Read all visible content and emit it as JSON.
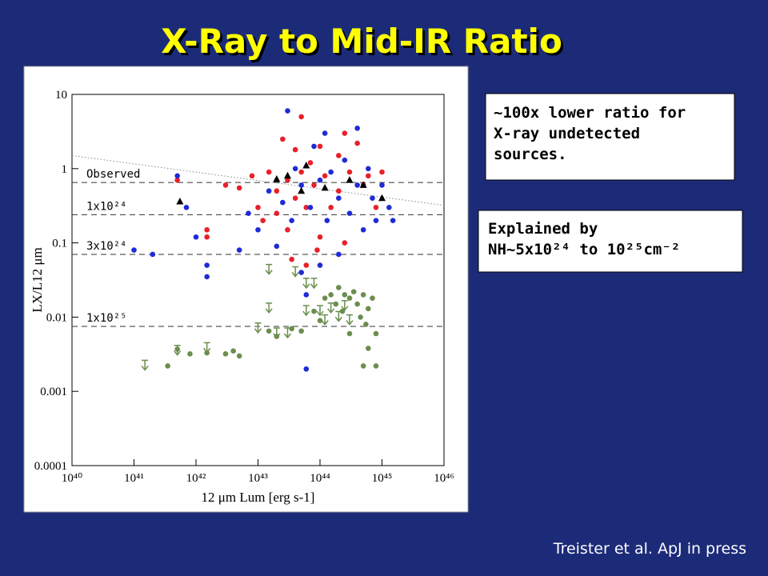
{
  "title": "X-Ray to Mid-IR Ratio",
  "callouts": [
    [
      "~100x lower ratio for",
      "X-ray undetected",
      "sources."
    ],
    [
      "Explained by",
      "NH~5x10²⁴ to 10²⁵cm⁻²"
    ]
  ],
  "citation": "Treister et al. ApJ in press",
  "chart_data": {
    "type": "scatter",
    "x_label": "12 μm Lum [erg s-1]",
    "y_label": "LX/L12 μm",
    "xscale": "log",
    "yscale": "log",
    "xlim": [
      1e+40,
      1e+46
    ],
    "ylim": [
      0.0001,
      10
    ],
    "xticks": [
      {
        "value": 1e+40,
        "label": "10⁴⁰"
      },
      {
        "value": 1e+41,
        "label": "10⁴¹"
      },
      {
        "value": 1e+42,
        "label": "10⁴²"
      },
      {
        "value": 1e+43,
        "label": "10⁴³"
      },
      {
        "value": 1e+44,
        "label": "10⁴⁴"
      },
      {
        "value": 1e+45,
        "label": "10⁴⁵"
      },
      {
        "value": 1e+46,
        "label": "10⁴⁶"
      }
    ],
    "yticks": [
      10,
      1,
      0.1,
      0.01,
      0.001,
      0.0001
    ],
    "reference_lines": [
      {
        "label": "Observed",
        "value": 0.65
      },
      {
        "label": "1x10²⁴",
        "value": 0.24
      },
      {
        "label": "3x10²⁴",
        "value": 0.07
      },
      {
        "label": "1x10²⁵",
        "value": 0.0075
      }
    ],
    "trend_line": {
      "x": [
        1e+40,
        1e+46
      ],
      "y": [
        1.5,
        0.32
      ]
    },
    "series": [
      {
        "color": "#e8202a",
        "marker": "dot",
        "x": [
          5e+41,
          1.5e+42,
          1.5e+42,
          3e+42,
          5e+42,
          8e+42,
          1e+43,
          1.5e+43,
          2e+43,
          2e+43,
          2.5e+43,
          3e+43,
          3e+43,
          4e+43,
          4e+43,
          5e+43,
          5e+43,
          6e+43,
          7e+43,
          8e+43,
          1e+44,
          1e+44,
          1.2e+44,
          1.5e+44,
          2e+44,
          2e+44,
          2.5e+44,
          3e+44,
          4e+44,
          5e+44,
          6e+44,
          8e+44,
          1e+45,
          3.5e+43,
          6e+43,
          2.5e+44,
          1.2e+43,
          9e+43
        ],
        "values": [
          0.7,
          0.15,
          0.12,
          0.6,
          0.55,
          0.8,
          0.3,
          0.9,
          0.5,
          0.25,
          2.5,
          0.7,
          0.15,
          1.8,
          0.4,
          5,
          0.9,
          0.3,
          1.2,
          0.6,
          2.0,
          0.12,
          0.8,
          0.3,
          1.5,
          0.5,
          0.1,
          0.9,
          2.2,
          0.6,
          0.8,
          0.3,
          0.9,
          0.06,
          0.05,
          3,
          0.2,
          0.08
        ]
      },
      {
        "color": "#1f2bd6",
        "marker": "dot",
        "x": [
          5e+41,
          7e+41,
          1e+42,
          1.5e+42,
          1.5e+42,
          2e+41,
          1e+41,
          7e+42,
          1e+43,
          1.5e+43,
          2e+43,
          2.5e+43,
          3e+43,
          3.5e+43,
          4e+43,
          5e+43,
          5e+43,
          6e+43,
          6e+43,
          7e+43,
          8e+43,
          1e+44,
          1e+44,
          1.2e+44,
          1.3e+44,
          1.5e+44,
          2e+44,
          2e+44,
          2.5e+44,
          3e+44,
          4e+44,
          4e+44,
          5e+44,
          6e+44,
          7e+44,
          8e+44,
          1e+45,
          1.3e+45,
          1.5e+45,
          5e+42
        ],
        "values": [
          0.8,
          0.3,
          0.12,
          0.05,
          0.035,
          0.07,
          0.08,
          0.25,
          0.15,
          0.5,
          0.09,
          0.35,
          6,
          0.2,
          1,
          0.04,
          0.6,
          0.02,
          0.002,
          0.3,
          2,
          0.7,
          0.05,
          3,
          0.2,
          0.9,
          0.4,
          0.07,
          1.3,
          0.25,
          3.5,
          0.6,
          0.15,
          1.0,
          0.4,
          0.2,
          0.6,
          0.3,
          0.2,
          0.08
        ]
      },
      {
        "color": "#6b8e4e",
        "marker": "dot",
        "x": [
          3.5e+41,
          5e+41,
          8e+41,
          1.5e+42,
          3e+42,
          4e+42,
          5e+42,
          1.5e+43,
          2e+43,
          3.5e+43,
          5e+43,
          8e+43,
          1e+44,
          1.2e+44,
          1.5e+44,
          1.8e+44,
          2e+44,
          2.3e+44,
          2.5e+44,
          3e+44,
          3.5e+44,
          4e+44,
          4.5e+44,
          5e+44,
          5.5e+44,
          6e+44,
          7e+44,
          8e+44,
          6e+44,
          5e+44,
          8e+44,
          3e+44
        ],
        "values": [
          0.0022,
          0.0037,
          0.0032,
          0.0033,
          0.0032,
          0.0035,
          0.003,
          0.0065,
          0.0055,
          0.007,
          0.0065,
          0.012,
          0.009,
          0.018,
          0.02,
          0.015,
          0.025,
          0.012,
          0.02,
          0.018,
          0.022,
          0.015,
          0.01,
          0.02,
          0.008,
          0.013,
          0.018,
          0.006,
          0.0038,
          0.0022,
          0.0022,
          0.006
        ]
      },
      {
        "color": "#6b8e4e",
        "marker": "arrow",
        "x": [
          1.5e+41,
          5e+41,
          1.5e+42,
          1e+43,
          3e+43,
          4e+43,
          6e+43,
          8e+43,
          6e+43,
          1.5e+43,
          2e+43,
          1e+44,
          1.2e+44,
          1.5e+44,
          2.5e+44,
          2e+44,
          3e+44,
          1.5e+43
        ],
        "values": [
          0.0022,
          0.0035,
          0.0038,
          0.007,
          0.006,
          0.04,
          0.028,
          0.028,
          0.012,
          0.043,
          0.006,
          0.012,
          0.009,
          0.013,
          0.014,
          0.01,
          0.009,
          0.013
        ]
      },
      {
        "color": "#000000",
        "marker": "triangle",
        "x": [
          5.5e+41,
          2e+43,
          3e+43,
          5e+43,
          6e+43,
          1.2e+44,
          3e+44,
          5e+44,
          1e+45
        ],
        "values": [
          0.36,
          0.72,
          0.8,
          0.5,
          1.1,
          0.55,
          0.7,
          0.6,
          0.4
        ]
      }
    ]
  }
}
